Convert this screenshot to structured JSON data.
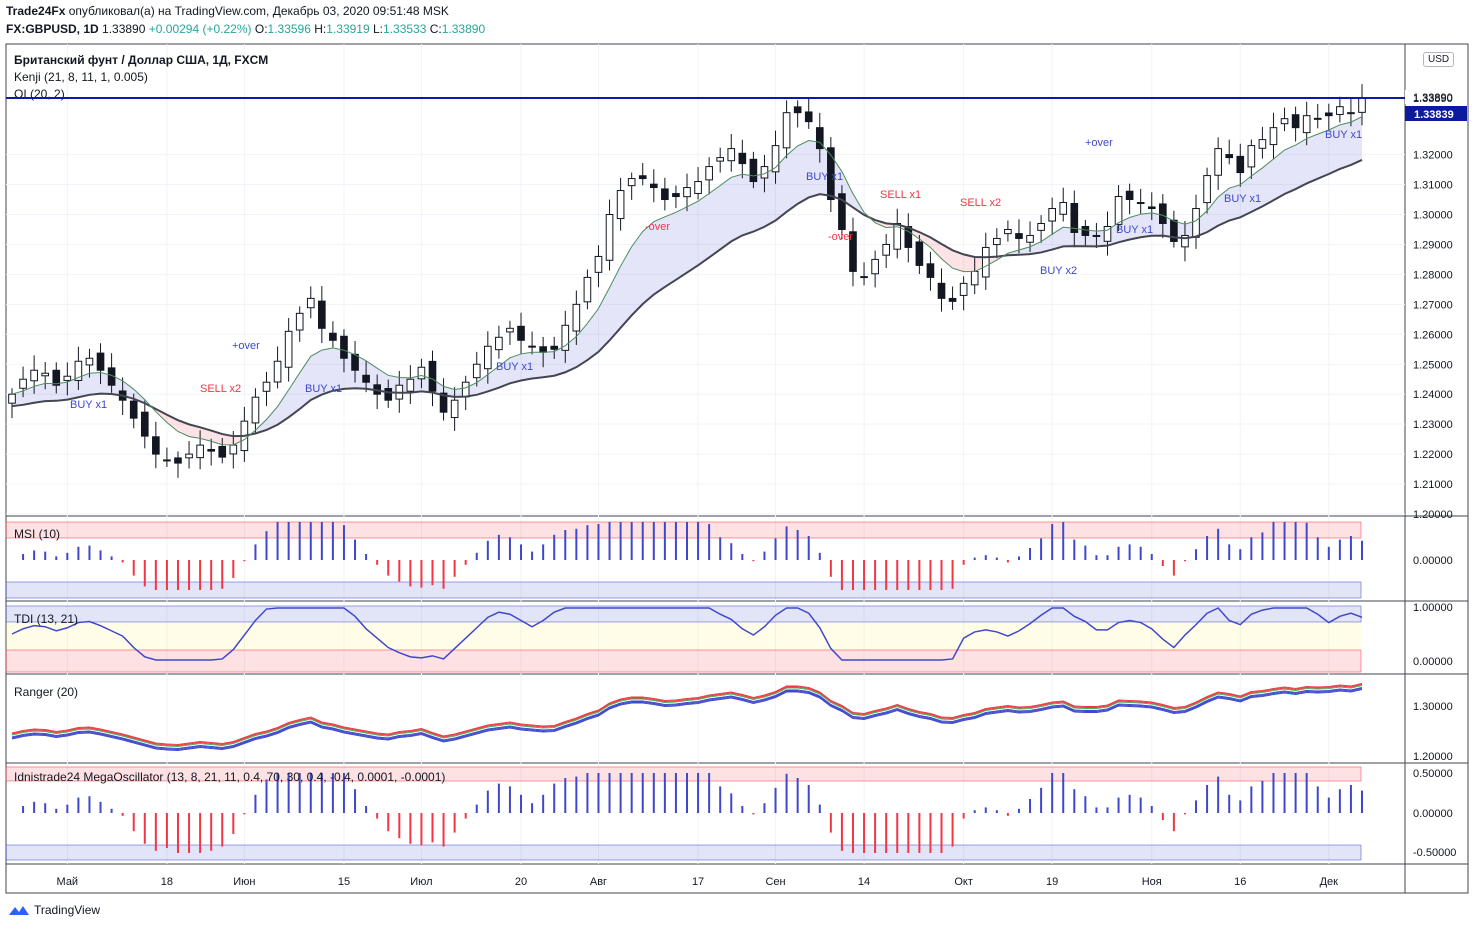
{
  "header": {
    "publisher": "Trade24Fx",
    "published_text": "опубликовал(а) на TradingView.com, Декабрь 03, 2020 09:51:48 MSK",
    "symbol": "FX:GBPUSD, 1D",
    "last": "1.33890",
    "change": "+0.00294 (+0.22%)",
    "o_label": "O:",
    "o": "1.33596",
    "h_label": "H:",
    "h": "1.33919",
    "l_label": "L:",
    "l": "1.33533",
    "c_label": "C:",
    "c": "1.33890"
  },
  "main_pane": {
    "title": "Британский фунт / Доллар США, 1Д, FXCM",
    "indicator1": "Kenji (21, 8, 11, 1, 0.005)",
    "indicator2": "OI (20, 2)",
    "currency": "USD",
    "price_tag_last": "1.33890",
    "price_tag_2": "1.33839"
  },
  "panes": {
    "msi": "MSI (10)",
    "tdi": "TDI (13, 21)",
    "ranger": "Ranger (20)",
    "mega": "Idnistrade24 MegaOscillator (13, 8, 21, 11, 0.4, 70, 30, 0.4, -0.4, 0.0001, -0.0001)"
  },
  "footer": {
    "brand": "TradingView"
  },
  "colors": {
    "bull": "#ffffff",
    "bear": "#131722",
    "blue": "#3f48cc",
    "red": "#f23645",
    "green": "#4caf50",
    "navy": "#0d1a9e"
  },
  "chart_data": [
    {
      "type": "candlestick",
      "title": "Британский фунт / Доллар США, 1Д, FXCM",
      "symbol": "GBPUSD",
      "interval": "1D",
      "ylim": [
        1.2,
        1.34
      ],
      "y_ticks": [
        "1.20000",
        "1.21000",
        "1.22000",
        "1.23000",
        "1.24000",
        "1.25000",
        "1.26000",
        "1.27000",
        "1.28000",
        "1.29000",
        "1.30000",
        "1.31000",
        "1.32000",
        "1.33890"
      ],
      "x_ticks": [
        "Май",
        "18",
        "Июн",
        "15",
        "Июл",
        "20",
        "Авг",
        "17",
        "Сен",
        "14",
        "Окт",
        "19",
        "Ноя",
        "16",
        "Дек"
      ],
      "series": [
        {
          "name": "close_approx",
          "values": [
            1.24,
            1.245,
            1.248,
            1.247,
            1.243,
            1.246,
            1.251,
            1.252,
            1.248,
            1.243,
            1.238,
            1.232,
            1.226,
            1.22,
            1.218,
            1.217,
            1.22,
            1.223,
            1.221,
            1.219,
            1.223,
            1.231,
            1.239,
            1.244,
            1.251,
            1.261,
            1.267,
            1.272,
            1.262,
            1.258,
            1.252,
            1.248,
            1.244,
            1.24,
            1.238,
            1.243,
            1.245,
            1.249,
            1.241,
            1.234,
            1.238,
            1.244,
            1.25,
            1.256,
            1.259,
            1.262,
            1.258,
            1.256,
            1.254,
            1.255,
            1.263,
            1.27,
            1.279,
            1.286,
            1.3,
            1.308,
            1.312,
            1.312,
            1.309,
            1.305,
            1.306,
            1.309,
            1.311,
            1.316,
            1.319,
            1.322,
            1.317,
            1.311,
            1.316,
            1.323,
            1.334,
            1.334,
            1.331,
            1.322,
            1.305,
            1.295,
            1.281,
            1.279,
            1.285,
            1.29,
            1.297,
            1.289,
            1.283,
            1.279,
            1.272,
            1.271,
            1.277,
            1.281,
            1.289,
            1.292,
            1.295,
            1.292,
            1.293,
            1.297,
            1.302,
            1.304,
            1.294,
            1.293,
            1.293,
            1.296,
            1.306,
            1.305,
            1.304,
            1.302,
            1.297,
            1.291,
            1.293,
            1.302,
            1.313,
            1.322,
            1.319,
            1.314,
            1.323,
            1.325,
            1.329,
            1.332,
            1.329,
            1.333,
            1.332,
            1.333,
            1.336,
            1.334,
            1.339
          ]
        }
      ]
    },
    {
      "type": "bar",
      "title": "MSI (10)",
      "y_ticks": [
        "0.00000"
      ]
    },
    {
      "type": "line",
      "title": "TDI (13, 21)",
      "y_ticks": [
        "1.00000",
        "0.00000"
      ]
    },
    {
      "type": "line",
      "title": "Ranger (20)",
      "y_ticks": [
        "1.30000",
        "1.20000"
      ]
    },
    {
      "type": "bar",
      "title": "Idnistrade24 MegaOscillator (13, 8, 21, 11, 0.4, 70, 30, 0.4, -0.4, 0.0001, -0.0001)",
      "y_ticks": [
        "0.50000",
        "0.00000",
        "-0.50000"
      ]
    }
  ],
  "signals": [
    {
      "text": "BUY x1",
      "color": "#3f48cc"
    },
    {
      "text": "SELL x2",
      "color": "#f23645"
    },
    {
      "text": "+over",
      "color": "#3f48cc"
    },
    {
      "text": "-over",
      "color": "#f23645"
    },
    {
      "text": "BUY x2",
      "color": "#3f48cc"
    },
    {
      "text": "SELL x1",
      "color": "#f23645"
    }
  ]
}
